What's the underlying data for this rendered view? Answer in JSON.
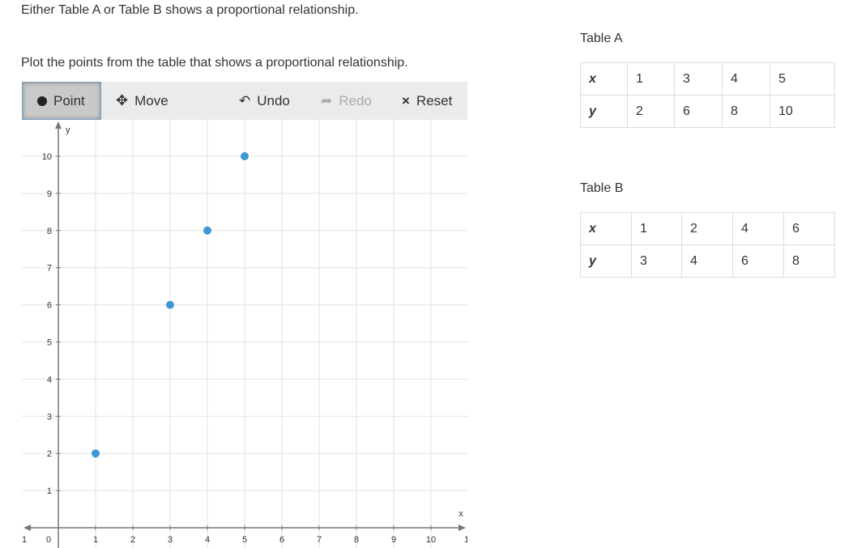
{
  "prompt": "Either Table A or Table B shows a proportional relationship.",
  "instruction": "Plot the points from the table that shows a proportional relationship.",
  "toolbar": {
    "point": "Point",
    "move": "Move",
    "undo": "Undo",
    "redo": "Redo",
    "reset": "Reset",
    "active": "Point"
  },
  "tableA": {
    "title": "Table A",
    "x_label": "x",
    "y_label": "y",
    "x": [
      "1",
      "3",
      "4",
      "5"
    ],
    "y": [
      "2",
      "6",
      "8",
      "10"
    ]
  },
  "tableB": {
    "title": "Table B",
    "x_label": "x",
    "y_label": "y",
    "x": [
      "1",
      "2",
      "4",
      "6"
    ],
    "y": [
      "3",
      "4",
      "6",
      "8"
    ]
  },
  "colors": {
    "point": "#3d97d3",
    "toolbar": "#ebebeb"
  },
  "chart_data": {
    "type": "scatter",
    "xlabel": "x",
    "ylabel": "y",
    "xlim": [
      -1,
      11
    ],
    "ylim": [
      0,
      11
    ],
    "grid": true,
    "x_ticks": [
      "1",
      "0",
      "1",
      "2",
      "3",
      "4",
      "5",
      "6",
      "7",
      "8",
      "9",
      "10",
      "1"
    ],
    "y_ticks": [
      "1",
      "2",
      "3",
      "4",
      "5",
      "6",
      "7",
      "8",
      "9",
      "10"
    ],
    "points": [
      [
        1,
        2
      ],
      [
        3,
        6
      ],
      [
        4,
        8
      ],
      [
        5,
        10
      ]
    ]
  }
}
